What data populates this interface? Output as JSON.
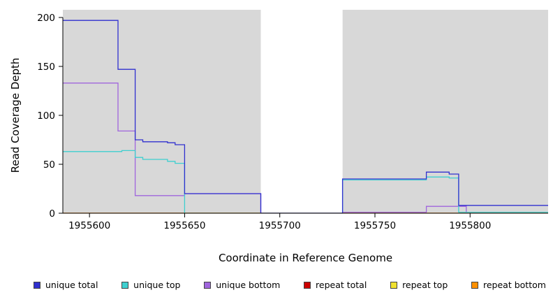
{
  "chart_data": {
    "type": "line",
    "title": "",
    "xlabel": "Coordinate in Reference Genome",
    "ylabel": "Read Coverage Depth",
    "xlim": [
      1955586,
      1955841
    ],
    "ylim": [
      0,
      200
    ],
    "x_ticks": [
      1955600,
      1955650,
      1955700,
      1955750,
      1955800
    ],
    "y_ticks": [
      0,
      50,
      100,
      150,
      200
    ],
    "grid": false,
    "legend_position": "bottom-horizontal",
    "plot_background_color": "#d8d8d8",
    "background_regions": [
      {
        "x0": 1955586,
        "x1": 1955690,
        "color": "#d8d8d8"
      },
      {
        "x0": 1955733,
        "x1": 1955841,
        "color": "#d8d8d8"
      }
    ],
    "series": [
      {
        "name": "repeat total",
        "color": "#cd0000",
        "step": [
          [
            1955586,
            0
          ],
          [
            1955841,
            0
          ]
        ]
      },
      {
        "name": "repeat top",
        "color": "#f0e130",
        "step": [
          [
            1955586,
            0
          ],
          [
            1955841,
            0
          ]
        ]
      },
      {
        "name": "unique bottom",
        "color": "#a065dd",
        "step": [
          [
            1955586,
            133
          ],
          [
            1955615,
            84
          ],
          [
            1955624,
            18
          ],
          [
            1955650,
            20
          ],
          [
            1955690,
            0
          ],
          [
            1955733,
            1
          ],
          [
            1955777,
            7
          ],
          [
            1955798,
            0
          ],
          [
            1955841,
            0
          ]
        ]
      },
      {
        "name": "unique top",
        "color": "#3ecfcf",
        "step": [
          [
            1955586,
            63
          ],
          [
            1955617,
            64
          ],
          [
            1955624,
            57
          ],
          [
            1955628,
            55
          ],
          [
            1955641,
            53
          ],
          [
            1955645,
            51
          ],
          [
            1955650,
            0
          ],
          [
            1955733,
            34
          ],
          [
            1955777,
            37
          ],
          [
            1955789,
            36
          ],
          [
            1955794,
            1
          ],
          [
            1955841,
            1
          ]
        ]
      },
      {
        "name": "unique total",
        "color": "#3030cf",
        "step": [
          [
            1955586,
            197
          ],
          [
            1955615,
            147
          ],
          [
            1955624,
            75
          ],
          [
            1955628,
            73
          ],
          [
            1955641,
            72
          ],
          [
            1955645,
            70
          ],
          [
            1955650,
            20
          ],
          [
            1955690,
            0
          ],
          [
            1955733,
            35
          ],
          [
            1955777,
            42
          ],
          [
            1955789,
            40
          ],
          [
            1955794,
            8
          ],
          [
            1955841,
            8
          ]
        ]
      },
      {
        "name": "repeat bottom",
        "color": "#ff9000",
        "step": [
          [
            1955586,
            0
          ],
          [
            1955690,
            null
          ],
          [
            1955733,
            0
          ],
          [
            1955841,
            0
          ]
        ]
      }
    ],
    "legend": [
      {
        "label": "unique total",
        "color": "#3030cf"
      },
      {
        "label": "unique top",
        "color": "#3ecfcf"
      },
      {
        "label": "unique bottom",
        "color": "#a065dd"
      },
      {
        "label": "repeat total",
        "color": "#cd0000"
      },
      {
        "label": "repeat top",
        "color": "#f0e130"
      },
      {
        "label": "repeat bottom",
        "color": "#ff9000"
      }
    ]
  }
}
